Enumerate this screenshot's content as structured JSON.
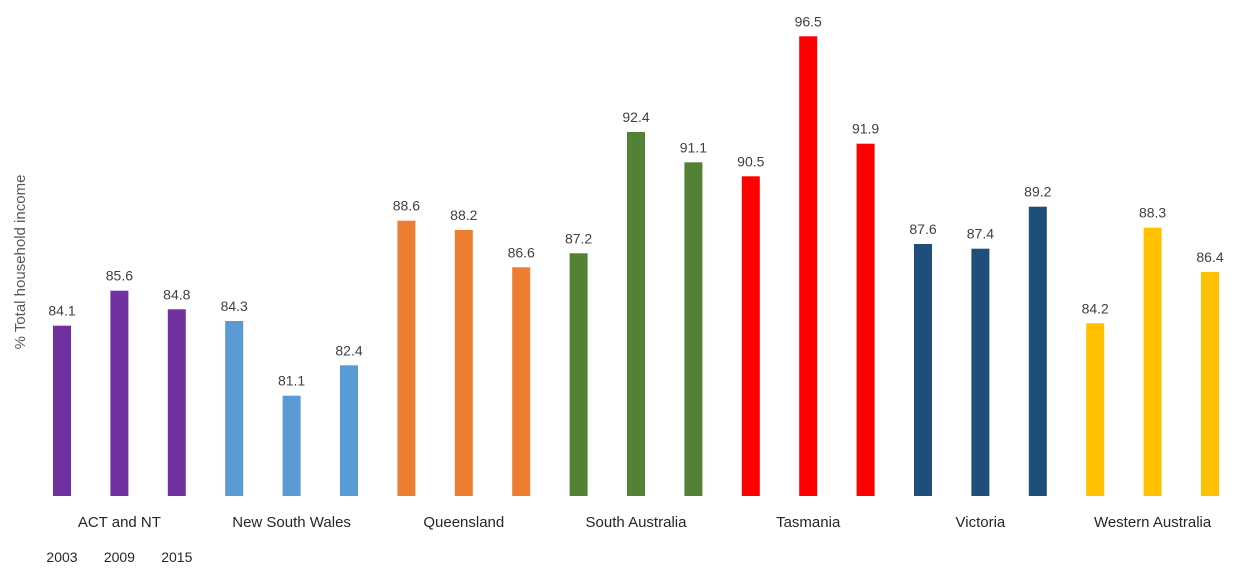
{
  "chart_data": {
    "type": "bar",
    "title": "",
    "ylabel": "% Total household income",
    "xlabel": "",
    "ylim": [
      76.8,
      97.2
    ],
    "grid": false,
    "legend": "none",
    "year_labels": [
      "2003",
      "2009",
      "2015"
    ],
    "groups": [
      {
        "category": "ACT and NT",
        "color": "#7030A0",
        "values": [
          84.1,
          85.6,
          84.8
        ]
      },
      {
        "category": "New South Wales",
        "color": "#5B9BD5",
        "values": [
          84.3,
          81.1,
          82.4
        ]
      },
      {
        "category": "Queensland",
        "color": "#ED7D31",
        "values": [
          88.6,
          88.2,
          86.6
        ]
      },
      {
        "category": "South Australia",
        "color": "#548235",
        "values": [
          87.2,
          92.4,
          91.1
        ]
      },
      {
        "category": "Tasmania",
        "color": "#FF0000",
        "values": [
          90.5,
          96.5,
          91.9
        ]
      },
      {
        "category": "Victoria",
        "color": "#1F4E79",
        "values": [
          87.6,
          87.4,
          89.2
        ]
      },
      {
        "category": "Western Australia",
        "color": "#FFC000",
        "values": [
          84.2,
          88.3,
          86.4
        ]
      }
    ]
  }
}
